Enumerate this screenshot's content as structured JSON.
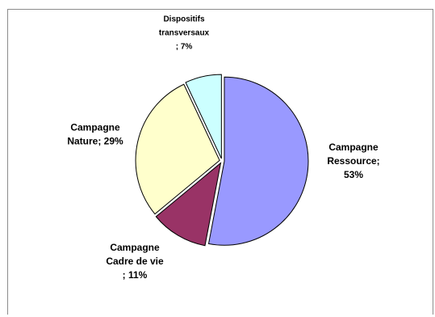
{
  "chart_data": {
    "type": "pie",
    "slices": [
      {
        "label": [
          "Campagne",
          "Ressource;",
          "53%"
        ],
        "value": 53,
        "color": "#9999ff"
      },
      {
        "label": [
          "Campagne",
          "Cadre de vie",
          "; 11%"
        ],
        "value": 11,
        "color": "#993366"
      },
      {
        "label": [
          "Campagne",
          "Nature; 29%"
        ],
        "value": 29,
        "color": "#ffffcc"
      },
      {
        "label": [
          "Dispositifs",
          "transversaux",
          "; 7%"
        ],
        "value": 7,
        "color": "#ccffff"
      }
    ],
    "start_angle_deg": 0,
    "direction": "clockwise",
    "exploded": true,
    "legend": "none"
  }
}
